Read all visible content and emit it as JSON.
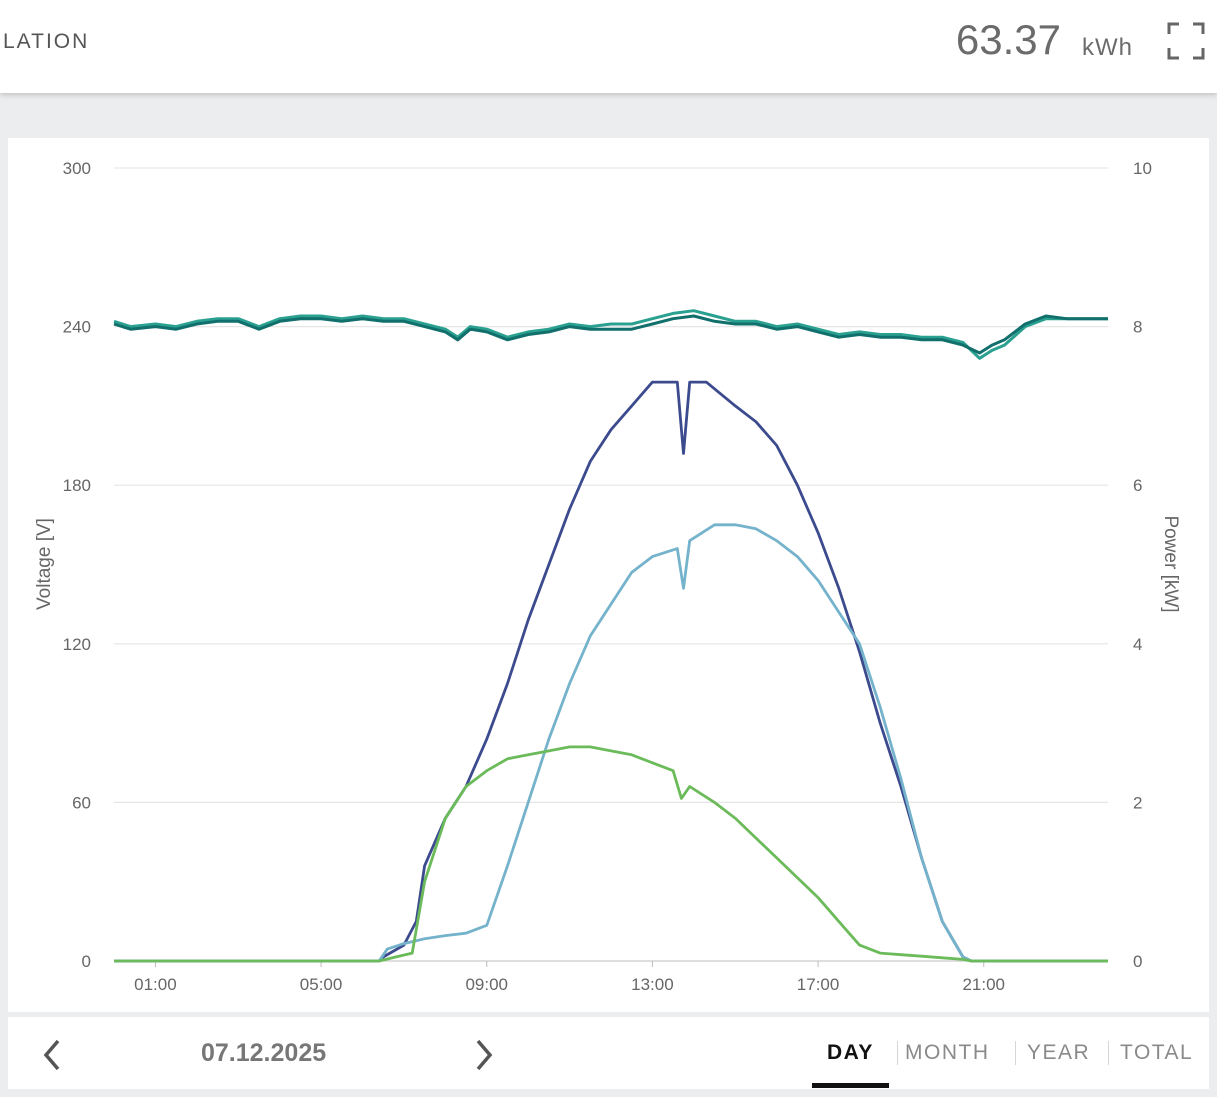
{
  "header": {
    "title": "LATION",
    "total_value": "63.37",
    "total_unit": "kWh"
  },
  "icons": {
    "expand": "fullscreen-expand-icon",
    "prev": "chevron-left-icon",
    "next": "chevron-right-icon"
  },
  "footer": {
    "date": "07.12.2025",
    "tabs": [
      {
        "label": "DAY",
        "active": true
      },
      {
        "label": "MONTH",
        "active": false
      },
      {
        "label": "YEAR",
        "active": false
      },
      {
        "label": "TOTAL",
        "active": false
      }
    ]
  },
  "colors": {
    "voltage_1": "#2aa090",
    "voltage_2": "#116f6c",
    "power_dark": "#3c4a8e",
    "power_light": "#74b3cb",
    "power_green": "#6bbb5a",
    "grid": "#e6e6e6",
    "axis_text": "#666666"
  },
  "chart_data": {
    "type": "line",
    "x_ticks": [
      "01:00",
      "05:00",
      "09:00",
      "13:00",
      "17:00",
      "21:00"
    ],
    "x_unit": "hours of day",
    "xlim": [
      0,
      24
    ],
    "y_left": {
      "label": "Voltage [V]",
      "ticks": [
        "0",
        "60",
        "120",
        "180",
        "240",
        "300"
      ],
      "lim": [
        0,
        300
      ]
    },
    "y_right": {
      "label": "Power [kW]",
      "ticks": [
        "0",
        "2",
        "4",
        "6",
        "8",
        "10"
      ],
      "lim": [
        0,
        10
      ]
    },
    "grid": true,
    "series": [
      {
        "axis": "left",
        "color": "#2aa090",
        "points": [
          [
            0,
            242
          ],
          [
            0.4,
            240
          ],
          [
            1,
            241
          ],
          [
            1.5,
            240
          ],
          [
            2,
            242
          ],
          [
            2.5,
            243
          ],
          [
            3,
            243
          ],
          [
            3.5,
            240
          ],
          [
            4,
            243
          ],
          [
            4.5,
            244
          ],
          [
            5,
            244
          ],
          [
            5.5,
            243
          ],
          [
            6,
            244
          ],
          [
            6.5,
            243
          ],
          [
            7,
            243
          ],
          [
            7.5,
            241
          ],
          [
            8,
            239
          ],
          [
            8.3,
            236
          ],
          [
            8.6,
            240
          ],
          [
            9,
            239
          ],
          [
            9.5,
            236
          ],
          [
            10,
            238
          ],
          [
            10.5,
            239
          ],
          [
            11,
            241
          ],
          [
            11.5,
            240
          ],
          [
            12,
            241
          ],
          [
            12.5,
            241
          ],
          [
            13,
            243
          ],
          [
            13.5,
            245
          ],
          [
            14,
            246
          ],
          [
            14.5,
            244
          ],
          [
            15,
            242
          ],
          [
            15.5,
            242
          ],
          [
            16,
            240
          ],
          [
            16.5,
            241
          ],
          [
            17,
            239
          ],
          [
            17.5,
            237
          ],
          [
            18,
            238
          ],
          [
            18.5,
            237
          ],
          [
            19,
            237
          ],
          [
            19.5,
            236
          ],
          [
            20,
            236
          ],
          [
            20.5,
            234
          ],
          [
            20.9,
            228
          ],
          [
            21.2,
            231
          ],
          [
            21.5,
            233
          ],
          [
            22,
            240
          ],
          [
            22.5,
            243
          ],
          [
            23,
            243
          ],
          [
            24,
            243
          ]
        ]
      },
      {
        "axis": "left",
        "color": "#116f6c",
        "points": [
          [
            0,
            241
          ],
          [
            0.4,
            239
          ],
          [
            1,
            240
          ],
          [
            1.5,
            239
          ],
          [
            2,
            241
          ],
          [
            2.5,
            242
          ],
          [
            3,
            242
          ],
          [
            3.5,
            239
          ],
          [
            4,
            242
          ],
          [
            4.5,
            243
          ],
          [
            5,
            243
          ],
          [
            5.5,
            242
          ],
          [
            6,
            243
          ],
          [
            6.5,
            242
          ],
          [
            7,
            242
          ],
          [
            7.5,
            240
          ],
          [
            8,
            238
          ],
          [
            8.3,
            235
          ],
          [
            8.6,
            239
          ],
          [
            9,
            238
          ],
          [
            9.5,
            235
          ],
          [
            10,
            237
          ],
          [
            10.5,
            238
          ],
          [
            11,
            240
          ],
          [
            11.5,
            239
          ],
          [
            12,
            239
          ],
          [
            12.5,
            239
          ],
          [
            13,
            241
          ],
          [
            13.5,
            243
          ],
          [
            14,
            244
          ],
          [
            14.5,
            242
          ],
          [
            15,
            241
          ],
          [
            15.5,
            241
          ],
          [
            16,
            239
          ],
          [
            16.5,
            240
          ],
          [
            17,
            238
          ],
          [
            17.5,
            236
          ],
          [
            18,
            237
          ],
          [
            18.5,
            236
          ],
          [
            19,
            236
          ],
          [
            19.5,
            235
          ],
          [
            20,
            235
          ],
          [
            20.5,
            233
          ],
          [
            20.9,
            230
          ],
          [
            21.2,
            233
          ],
          [
            21.5,
            235
          ],
          [
            22,
            241
          ],
          [
            22.5,
            244
          ],
          [
            23,
            243
          ],
          [
            24,
            243
          ]
        ]
      },
      {
        "axis": "right",
        "color": "#3c4a8e",
        "points": [
          [
            0,
            0
          ],
          [
            6.4,
            0
          ],
          [
            6.5,
            0.05
          ],
          [
            7,
            0.2
          ],
          [
            7.3,
            0.5
          ],
          [
            7.5,
            1.2
          ],
          [
            8,
            1.8
          ],
          [
            8.5,
            2.2
          ],
          [
            9,
            2.8
          ],
          [
            9.5,
            3.5
          ],
          [
            10,
            4.3
          ],
          [
            10.5,
            5.0
          ],
          [
            11,
            5.7
          ],
          [
            11.5,
            6.3
          ],
          [
            12,
            6.7
          ],
          [
            12.5,
            7.0
          ],
          [
            13,
            7.3
          ],
          [
            13.6,
            7.3
          ],
          [
            13.75,
            6.4
          ],
          [
            13.9,
            7.3
          ],
          [
            14.3,
            7.3
          ],
          [
            15,
            7.0
          ],
          [
            15.5,
            6.8
          ],
          [
            16,
            6.5
          ],
          [
            16.5,
            6.0
          ],
          [
            17,
            5.4
          ],
          [
            17.5,
            4.7
          ],
          [
            18,
            3.9
          ],
          [
            18.5,
            3.0
          ],
          [
            19,
            2.2
          ],
          [
            19.5,
            1.3
          ],
          [
            20,
            0.5
          ],
          [
            20.5,
            0.05
          ],
          [
            20.7,
            0
          ],
          [
            24,
            0
          ]
        ]
      },
      {
        "axis": "right",
        "color": "#74b3cb",
        "points": [
          [
            0,
            0
          ],
          [
            6.4,
            0
          ],
          [
            6.6,
            0.15
          ],
          [
            7,
            0.22
          ],
          [
            7.5,
            0.28
          ],
          [
            8,
            0.32
          ],
          [
            8.5,
            0.35
          ],
          [
            9,
            0.45
          ],
          [
            9.5,
            1.2
          ],
          [
            10,
            2.0
          ],
          [
            10.5,
            2.8
          ],
          [
            11,
            3.5
          ],
          [
            11.5,
            4.1
          ],
          [
            12,
            4.5
          ],
          [
            12.5,
            4.9
          ],
          [
            13,
            5.1
          ],
          [
            13.6,
            5.2
          ],
          [
            13.75,
            4.7
          ],
          [
            13.9,
            5.3
          ],
          [
            14.5,
            5.5
          ],
          [
            15,
            5.5
          ],
          [
            15.5,
            5.45
          ],
          [
            16,
            5.3
          ],
          [
            16.5,
            5.1
          ],
          [
            17,
            4.8
          ],
          [
            17.5,
            4.4
          ],
          [
            18,
            4.0
          ],
          [
            18.5,
            3.2
          ],
          [
            19,
            2.3
          ],
          [
            19.5,
            1.3
          ],
          [
            20,
            0.5
          ],
          [
            20.5,
            0.05
          ],
          [
            20.7,
            0
          ],
          [
            24,
            0
          ]
        ]
      },
      {
        "axis": "right",
        "color": "#6bbb5a",
        "points": [
          [
            0,
            0
          ],
          [
            6.4,
            0
          ],
          [
            6.8,
            0.05
          ],
          [
            7.2,
            0.1
          ],
          [
            7.5,
            1.0
          ],
          [
            8,
            1.8
          ],
          [
            8.5,
            2.2
          ],
          [
            9,
            2.4
          ],
          [
            9.5,
            2.55
          ],
          [
            10,
            2.6
          ],
          [
            10.5,
            2.65
          ],
          [
            11,
            2.7
          ],
          [
            11.5,
            2.7
          ],
          [
            12,
            2.65
          ],
          [
            12.5,
            2.6
          ],
          [
            13,
            2.5
          ],
          [
            13.5,
            2.4
          ],
          [
            13.7,
            2.05
          ],
          [
            13.9,
            2.2
          ],
          [
            14.5,
            2.0
          ],
          [
            15,
            1.8
          ],
          [
            15.5,
            1.55
          ],
          [
            16,
            1.3
          ],
          [
            16.5,
            1.05
          ],
          [
            17,
            0.8
          ],
          [
            17.5,
            0.5
          ],
          [
            18,
            0.2
          ],
          [
            18.5,
            0.1
          ],
          [
            19,
            0.08
          ],
          [
            19.5,
            0.06
          ],
          [
            20,
            0.04
          ],
          [
            20.5,
            0.02
          ],
          [
            20.7,
            0
          ],
          [
            24,
            0
          ]
        ]
      }
    ]
  }
}
